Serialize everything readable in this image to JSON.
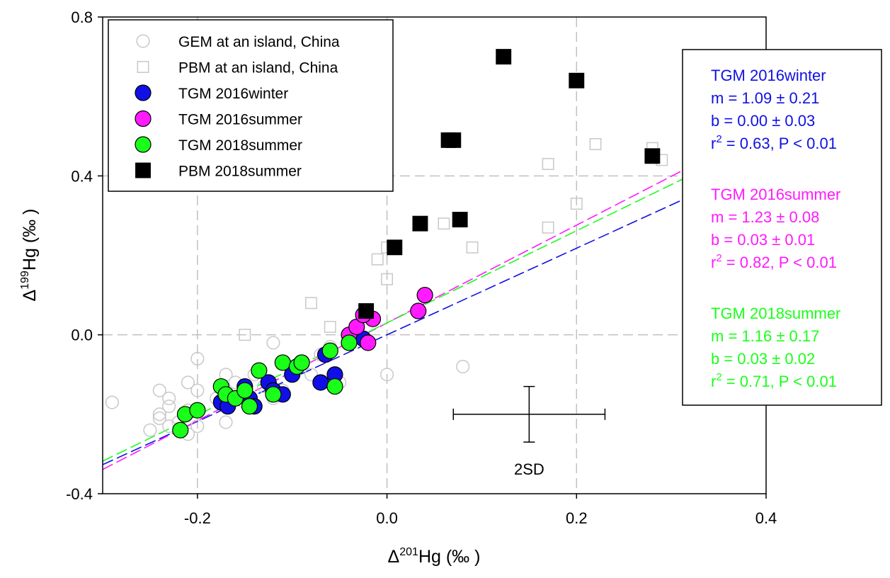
{
  "chart_data": {
    "type": "scatter",
    "xlabel": {
      "prefix": "Δ",
      "sup": "201",
      "rest": "Hg (‰ )"
    },
    "ylabel": {
      "prefix": "Δ",
      "sup": "199",
      "rest": "Hg (‰ )"
    },
    "xlim": [
      -0.3,
      0.4
    ],
    "ylim": [
      -0.4,
      0.8
    ],
    "xticks": [
      -0.2,
      0.0,
      0.2,
      0.4
    ],
    "yticks": [
      -0.4,
      0.0,
      0.4,
      0.8
    ],
    "xtick_labels": [
      "-0.2",
      "0.0",
      "0.2",
      "0.4"
    ],
    "ytick_labels": [
      "-0.4",
      "0.0",
      "0.4",
      "0.8"
    ],
    "gridlines": {
      "x": [
        -0.2,
        0.2
      ],
      "y": [
        0.0,
        0.4
      ],
      "x_zero": 0.0
    },
    "legend_position": "top-left",
    "series": [
      {
        "name": "GEM at an island, China",
        "marker": "circle-open",
        "color": "#c8c8c8",
        "points": [
          [
            -0.29,
            -0.17
          ],
          [
            -0.25,
            -0.24
          ],
          [
            -0.24,
            -0.14
          ],
          [
            -0.24,
            -0.2
          ],
          [
            -0.24,
            -0.21
          ],
          [
            -0.23,
            -0.16
          ],
          [
            -0.23,
            -0.18
          ],
          [
            -0.23,
            -0.23
          ],
          [
            -0.22,
            -0.22
          ],
          [
            -0.21,
            -0.12
          ],
          [
            -0.21,
            -0.19
          ],
          [
            -0.21,
            -0.25
          ],
          [
            -0.2,
            -0.06
          ],
          [
            -0.2,
            -0.14
          ],
          [
            -0.2,
            -0.23
          ],
          [
            -0.18,
            -0.16
          ],
          [
            -0.17,
            -0.1
          ],
          [
            -0.17,
            -0.22
          ],
          [
            -0.16,
            -0.12
          ],
          [
            -0.15,
            -0.17
          ],
          [
            -0.14,
            -0.1
          ],
          [
            -0.13,
            -0.13
          ],
          [
            -0.12,
            -0.02
          ],
          [
            -0.12,
            -0.16
          ],
          [
            -0.11,
            -0.14
          ],
          [
            -0.1,
            -0.08
          ],
          [
            -0.08,
            -0.1
          ],
          [
            -0.07,
            -0.05
          ],
          [
            -0.06,
            -0.03
          ],
          [
            -0.05,
            -0.12
          ],
          [
            0.0,
            -0.1
          ],
          [
            0.08,
            -0.08
          ]
        ]
      },
      {
        "name": "PBM at an island, China",
        "marker": "square-open",
        "color": "#c8c8c8",
        "points": [
          [
            -0.15,
            0.0
          ],
          [
            -0.08,
            0.08
          ],
          [
            -0.06,
            0.02
          ],
          [
            -0.01,
            0.19
          ],
          [
            0.0,
            0.14
          ],
          [
            0.0,
            0.22
          ],
          [
            0.06,
            0.28
          ],
          [
            0.09,
            0.22
          ],
          [
            0.17,
            0.27
          ],
          [
            0.17,
            0.43
          ],
          [
            0.2,
            0.33
          ],
          [
            0.22,
            0.48
          ],
          [
            0.28,
            0.47
          ],
          [
            0.29,
            0.44
          ]
        ]
      },
      {
        "name": "TGM 2016winter",
        "marker": "circle",
        "color": "#1010e6",
        "points": [
          [
            -0.175,
            -0.17
          ],
          [
            -0.17,
            -0.15
          ],
          [
            -0.168,
            -0.18
          ],
          [
            -0.15,
            -0.13
          ],
          [
            -0.145,
            -0.16
          ],
          [
            -0.14,
            -0.18
          ],
          [
            -0.125,
            -0.12
          ],
          [
            -0.12,
            -0.14
          ],
          [
            -0.11,
            -0.15
          ],
          [
            -0.1,
            -0.1
          ],
          [
            -0.09,
            -0.07
          ],
          [
            -0.07,
            -0.12
          ],
          [
            -0.065,
            -0.05
          ],
          [
            -0.055,
            -0.1
          ],
          [
            -0.025,
            -0.01
          ]
        ]
      },
      {
        "name": "TGM 2016summer",
        "marker": "circle",
        "color": "#ff1aff",
        "points": [
          [
            -0.04,
            0.0
          ],
          [
            -0.032,
            0.02
          ],
          [
            -0.02,
            -0.02
          ],
          [
            -0.015,
            0.04
          ],
          [
            0.033,
            0.06
          ],
          [
            0.04,
            0.1
          ],
          [
            -0.025,
            0.05
          ]
        ]
      },
      {
        "name": "TGM 2018summer",
        "marker": "circle",
        "color": "#1aff1a",
        "points": [
          [
            -0.218,
            -0.24
          ],
          [
            -0.213,
            -0.2
          ],
          [
            -0.2,
            -0.19
          ],
          [
            -0.175,
            -0.13
          ],
          [
            -0.17,
            -0.15
          ],
          [
            -0.16,
            -0.16
          ],
          [
            -0.15,
            -0.14
          ],
          [
            -0.145,
            -0.18
          ],
          [
            -0.135,
            -0.09
          ],
          [
            -0.12,
            -0.15
          ],
          [
            -0.11,
            -0.07
          ],
          [
            -0.095,
            -0.08
          ],
          [
            -0.09,
            -0.07
          ],
          [
            -0.06,
            -0.04
          ],
          [
            -0.055,
            -0.13
          ],
          [
            -0.04,
            -0.02
          ]
        ]
      },
      {
        "name": "PBM 2018summer",
        "marker": "square",
        "color": "#000000",
        "points": [
          [
            -0.022,
            0.06
          ],
          [
            0.008,
            0.22
          ],
          [
            0.035,
            0.28
          ],
          [
            0.065,
            0.49
          ],
          [
            0.07,
            0.49
          ],
          [
            0.077,
            0.29
          ],
          [
            0.123,
            0.7
          ],
          [
            0.2,
            0.64
          ],
          [
            0.28,
            0.45
          ]
        ]
      }
    ],
    "fits": [
      {
        "series": "TGM 2016winter",
        "m": 1.09,
        "b": 0.0,
        "color": "#1010e6",
        "x_range": [
          -0.3,
          0.4
        ]
      },
      {
        "series": "TGM 2016summer",
        "m": 1.23,
        "b": 0.03,
        "color": "#ff1aff",
        "x_range": [
          -0.3,
          0.4
        ]
      },
      {
        "series": "TGM 2018summer",
        "m": 1.16,
        "b": 0.03,
        "color": "#1aff1a",
        "x_range": [
          -0.3,
          0.4
        ]
      }
    ],
    "error_bar": {
      "x": 0.15,
      "y": -0.2,
      "x_err": 0.08,
      "y_err": 0.07,
      "label": "2SD"
    },
    "stats_box": {
      "groups": [
        {
          "color": "#1010e6",
          "title": "TGM 2016winter",
          "m_line": "m = 1.09 ± 0.21",
          "b_line": "b = 0.00 ± 0.03",
          "r_prefix": "r",
          "r_sup": "2",
          "r_rest": " = 0.63, P < 0.01"
        },
        {
          "color": "#ff1aff",
          "title": "TGM 2016summer",
          "m_line": "m = 1.23 ± 0.08",
          "b_line": "b = 0.03 ± 0.01",
          "r_prefix": "r",
          "r_sup": "2",
          "r_rest": " = 0.82, P < 0.01"
        },
        {
          "color": "#1aff1a",
          "title": "TGM 2018summer",
          "m_line": "m = 1.16 ± 0.17",
          "b_line": "b = 0.03 ± 0.02",
          "r_prefix": "r",
          "r_sup": "2",
          "r_rest": " = 0.71, P < 0.01"
        }
      ]
    }
  }
}
